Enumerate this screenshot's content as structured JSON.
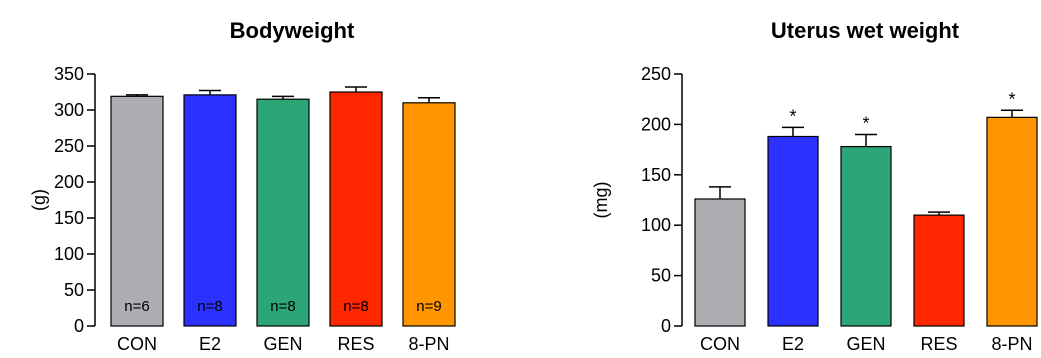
{
  "chart_data": [
    {
      "type": "bar",
      "title": "Bodyweight",
      "ylabel": "(g)",
      "xlabel": "",
      "ylim": [
        0,
        350
      ],
      "yticks": [
        0,
        50,
        100,
        150,
        200,
        250,
        300,
        350
      ],
      "categories": [
        "CON",
        "E2",
        "GEN",
        "RES",
        "8-PN"
      ],
      "values": [
        319,
        321,
        315,
        325,
        310
      ],
      "errors": [
        2,
        6,
        4,
        7,
        7
      ],
      "colors": [
        "#ADADB2",
        "#2B32FF",
        "#2CA677",
        "#FF2600",
        "#FF9500"
      ],
      "bar_labels": [
        "n=6",
        "n=8",
        "n=8",
        "n=8",
        "n=9"
      ],
      "significance": [
        "",
        "",
        "",
        "",
        ""
      ]
    },
    {
      "type": "bar",
      "title": "Uterus wet weight",
      "ylabel": "(mg)",
      "xlabel": "",
      "ylim": [
        0,
        250
      ],
      "yticks": [
        0,
        50,
        100,
        150,
        200,
        250
      ],
      "categories": [
        "CON",
        "E2",
        "GEN",
        "RES",
        "8-PN"
      ],
      "values": [
        126,
        188,
        178,
        110,
        207
      ],
      "errors": [
        12,
        9,
        12,
        3,
        7
      ],
      "colors": [
        "#ADADB2",
        "#2B32FF",
        "#2CA677",
        "#FF2600",
        "#FF9500"
      ],
      "bar_labels": [
        "",
        "",
        "",
        "",
        ""
      ],
      "significance": [
        "",
        "*",
        "*",
        "",
        "*"
      ]
    }
  ]
}
